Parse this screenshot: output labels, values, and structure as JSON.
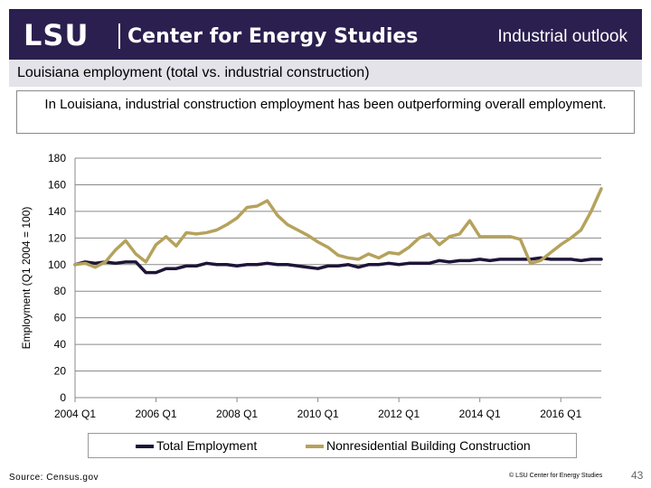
{
  "header": {
    "logo_text": "LSU",
    "center_name": "Center for Energy Studies",
    "slide_title": "Industrial outlook",
    "brand_color": "#2b1f4f"
  },
  "subhead": {
    "text": "Louisiana employment (total vs. industrial construction)"
  },
  "caption": "In Louisiana, industrial construction employment has been outperforming overall employment.",
  "chart_data": {
    "type": "line",
    "title": "",
    "xlabel": "",
    "ylabel": "Employment (Q1 2004 = 100)",
    "ylim": [
      0,
      180
    ],
    "yticks": [
      0,
      20,
      40,
      60,
      80,
      100,
      120,
      140,
      160,
      180
    ],
    "x_tick_labels": [
      "2004 Q1",
      "2006 Q1",
      "2008 Q1",
      "2010 Q1",
      "2012 Q1",
      "2014 Q1",
      "2016 Q1"
    ],
    "x_tick_quarters": [
      "2004 Q1",
      "2006 Q1",
      "2008 Q1",
      "2010 Q1",
      "2012 Q1",
      "2014 Q1",
      "2016 Q1"
    ],
    "x_start": "2004 Q1",
    "x_end": "2017 Q1",
    "grid": "horizontal",
    "legend_position": "bottom",
    "series": [
      {
        "name": "Total Employment",
        "color": "#1e1538",
        "values": [
          100,
          102,
          101,
          102,
          101,
          102,
          102,
          94,
          94,
          97,
          97,
          99,
          99,
          101,
          100,
          100,
          99,
          100,
          100,
          101,
          100,
          100,
          99,
          98,
          97,
          99,
          99,
          100,
          98,
          100,
          100,
          101,
          100,
          101,
          101,
          101,
          103,
          102,
          103,
          103,
          104,
          103,
          104,
          104,
          104,
          104,
          105,
          104,
          104,
          104,
          103,
          104,
          104
        ]
      },
      {
        "name": "Nonresidential Building Construction",
        "color": "#b5a25c",
        "values": [
          100,
          101,
          98,
          102,
          111,
          118,
          108,
          102,
          115,
          121,
          114,
          124,
          123,
          124,
          126,
          130,
          135,
          143,
          144,
          148,
          137,
          130,
          126,
          122,
          117,
          113,
          107,
          105,
          104,
          108,
          105,
          109,
          108,
          113,
          120,
          123,
          115,
          121,
          123,
          133,
          121,
          121,
          121,
          121,
          119,
          101,
          103,
          109,
          115,
          120,
          126,
          140,
          157
        ]
      }
    ]
  },
  "footer": {
    "source": "Source: Census.gov",
    "copyright": "© LSU Center for Energy Studies",
    "page_number": "43"
  }
}
